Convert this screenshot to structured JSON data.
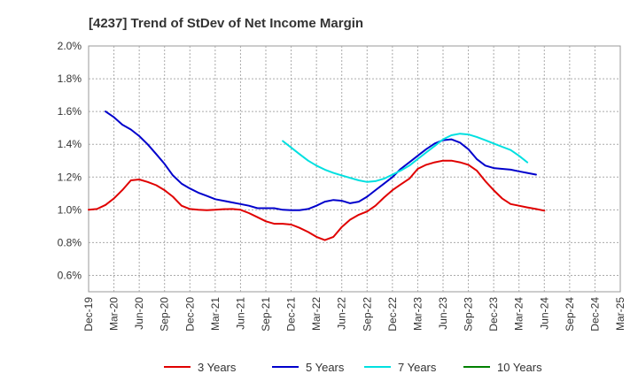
{
  "chart_data": {
    "type": "line",
    "title": "[4237]  Trend of StDev of Net Income Margin",
    "xlabel": "",
    "ylabel": "",
    "x_labels": [
      "Dec-19",
      "Mar-20",
      "Jun-20",
      "Sep-20",
      "Dec-20",
      "Mar-21",
      "Jun-21",
      "Sep-21",
      "Dec-21",
      "Mar-22",
      "Jun-22",
      "Sep-22",
      "Dec-22",
      "Mar-23",
      "Jun-23",
      "Sep-23",
      "Dec-23",
      "Mar-24",
      "Jun-24",
      "Sep-24",
      "Dec-24",
      "Mar-25"
    ],
    "y_ticks": [
      "0.6%",
      "0.8%",
      "1.0%",
      "1.2%",
      "1.4%",
      "1.6%",
      "1.8%",
      "2.0%"
    ],
    "ylim": [
      0.5,
      2.0
    ],
    "grid": true,
    "legend_position": "bottom",
    "series": [
      {
        "name": "3 Years",
        "color": "#e00000",
        "points": [
          [
            0,
            1.0
          ],
          [
            0.33,
            1.005
          ],
          [
            0.67,
            1.03
          ],
          [
            1,
            1.07
          ],
          [
            1.33,
            1.12
          ],
          [
            1.67,
            1.18
          ],
          [
            2,
            1.185
          ],
          [
            2.33,
            1.17
          ],
          [
            2.67,
            1.15
          ],
          [
            3,
            1.12
          ],
          [
            3.33,
            1.08
          ],
          [
            3.67,
            1.025
          ],
          [
            4,
            1.005
          ],
          [
            4.33,
            1.0
          ],
          [
            4.67,
            0.998
          ],
          [
            5,
            1.0
          ],
          [
            5.33,
            1.004
          ],
          [
            5.67,
            1.005
          ],
          [
            6,
            1.0
          ],
          [
            6.33,
            0.98
          ],
          [
            6.67,
            0.955
          ],
          [
            7,
            0.93
          ],
          [
            7.33,
            0.915
          ],
          [
            7.67,
            0.915
          ],
          [
            8,
            0.91
          ],
          [
            8.33,
            0.89
          ],
          [
            8.67,
            0.865
          ],
          [
            9,
            0.835
          ],
          [
            9.33,
            0.815
          ],
          [
            9.67,
            0.835
          ],
          [
            10,
            0.895
          ],
          [
            10.33,
            0.94
          ],
          [
            10.67,
            0.97
          ],
          [
            11,
            0.99
          ],
          [
            11.33,
            1.025
          ],
          [
            11.67,
            1.075
          ],
          [
            12,
            1.12
          ],
          [
            12.33,
            1.155
          ],
          [
            12.67,
            1.19
          ],
          [
            13,
            1.25
          ],
          [
            13.33,
            1.275
          ],
          [
            13.67,
            1.29
          ],
          [
            14,
            1.3
          ],
          [
            14.33,
            1.3
          ],
          [
            14.67,
            1.29
          ],
          [
            15,
            1.275
          ],
          [
            15.33,
            1.24
          ],
          [
            15.67,
            1.175
          ],
          [
            16,
            1.12
          ],
          [
            16.33,
            1.07
          ],
          [
            16.67,
            1.035
          ],
          [
            17,
            1.025
          ],
          [
            17.33,
            1.015
          ],
          [
            17.67,
            1.005
          ],
          [
            18,
            0.995
          ]
        ]
      },
      {
        "name": "5 Years",
        "color": "#0000cc",
        "points": [
          [
            0.67,
            1.6
          ],
          [
            1,
            1.565
          ],
          [
            1.33,
            1.52
          ],
          [
            1.67,
            1.49
          ],
          [
            2,
            1.45
          ],
          [
            2.33,
            1.4
          ],
          [
            2.67,
            1.34
          ],
          [
            3,
            1.28
          ],
          [
            3.33,
            1.21
          ],
          [
            3.67,
            1.16
          ],
          [
            4,
            1.13
          ],
          [
            4.33,
            1.105
          ],
          [
            4.67,
            1.085
          ],
          [
            5,
            1.065
          ],
          [
            5.33,
            1.055
          ],
          [
            5.67,
            1.045
          ],
          [
            6,
            1.035
          ],
          [
            6.33,
            1.025
          ],
          [
            6.67,
            1.01
          ],
          [
            7,
            1.01
          ],
          [
            7.33,
            1.01
          ],
          [
            7.67,
            1.0
          ],
          [
            8,
            0.998
          ],
          [
            8.33,
            0.998
          ],
          [
            8.67,
            1.005
          ],
          [
            9,
            1.025
          ],
          [
            9.33,
            1.05
          ],
          [
            9.67,
            1.06
          ],
          [
            10,
            1.055
          ],
          [
            10.33,
            1.04
          ],
          [
            10.67,
            1.05
          ],
          [
            11,
            1.08
          ],
          [
            11.33,
            1.12
          ],
          [
            11.67,
            1.16
          ],
          [
            12,
            1.2
          ],
          [
            12.33,
            1.25
          ],
          [
            12.67,
            1.29
          ],
          [
            13,
            1.33
          ],
          [
            13.33,
            1.37
          ],
          [
            13.67,
            1.405
          ],
          [
            14,
            1.425
          ],
          [
            14.33,
            1.43
          ],
          [
            14.67,
            1.41
          ],
          [
            15,
            1.37
          ],
          [
            15.33,
            1.31
          ],
          [
            15.67,
            1.27
          ],
          [
            16,
            1.255
          ],
          [
            16.33,
            1.25
          ],
          [
            16.67,
            1.245
          ],
          [
            17,
            1.235
          ],
          [
            17.33,
            1.225
          ],
          [
            17.67,
            1.215
          ]
        ]
      },
      {
        "name": "7 Years",
        "color": "#00e0e0",
        "points": [
          [
            7.67,
            1.42
          ],
          [
            8,
            1.38
          ],
          [
            8.33,
            1.34
          ],
          [
            8.67,
            1.3
          ],
          [
            9,
            1.27
          ],
          [
            9.33,
            1.245
          ],
          [
            9.67,
            1.225
          ],
          [
            10,
            1.21
          ],
          [
            10.33,
            1.195
          ],
          [
            10.67,
            1.18
          ],
          [
            11,
            1.17
          ],
          [
            11.33,
            1.175
          ],
          [
            11.67,
            1.19
          ],
          [
            12,
            1.215
          ],
          [
            12.33,
            1.24
          ],
          [
            12.67,
            1.27
          ],
          [
            13,
            1.31
          ],
          [
            13.33,
            1.35
          ],
          [
            13.67,
            1.39
          ],
          [
            14,
            1.43
          ],
          [
            14.33,
            1.455
          ],
          [
            14.67,
            1.465
          ],
          [
            15,
            1.46
          ],
          [
            15.33,
            1.445
          ],
          [
            15.67,
            1.425
          ],
          [
            16,
            1.405
          ],
          [
            16.33,
            1.385
          ],
          [
            16.67,
            1.365
          ],
          [
            17,
            1.33
          ],
          [
            17.33,
            1.29
          ]
        ]
      },
      {
        "name": "10 Years",
        "color": "#008000",
        "points": []
      }
    ]
  }
}
